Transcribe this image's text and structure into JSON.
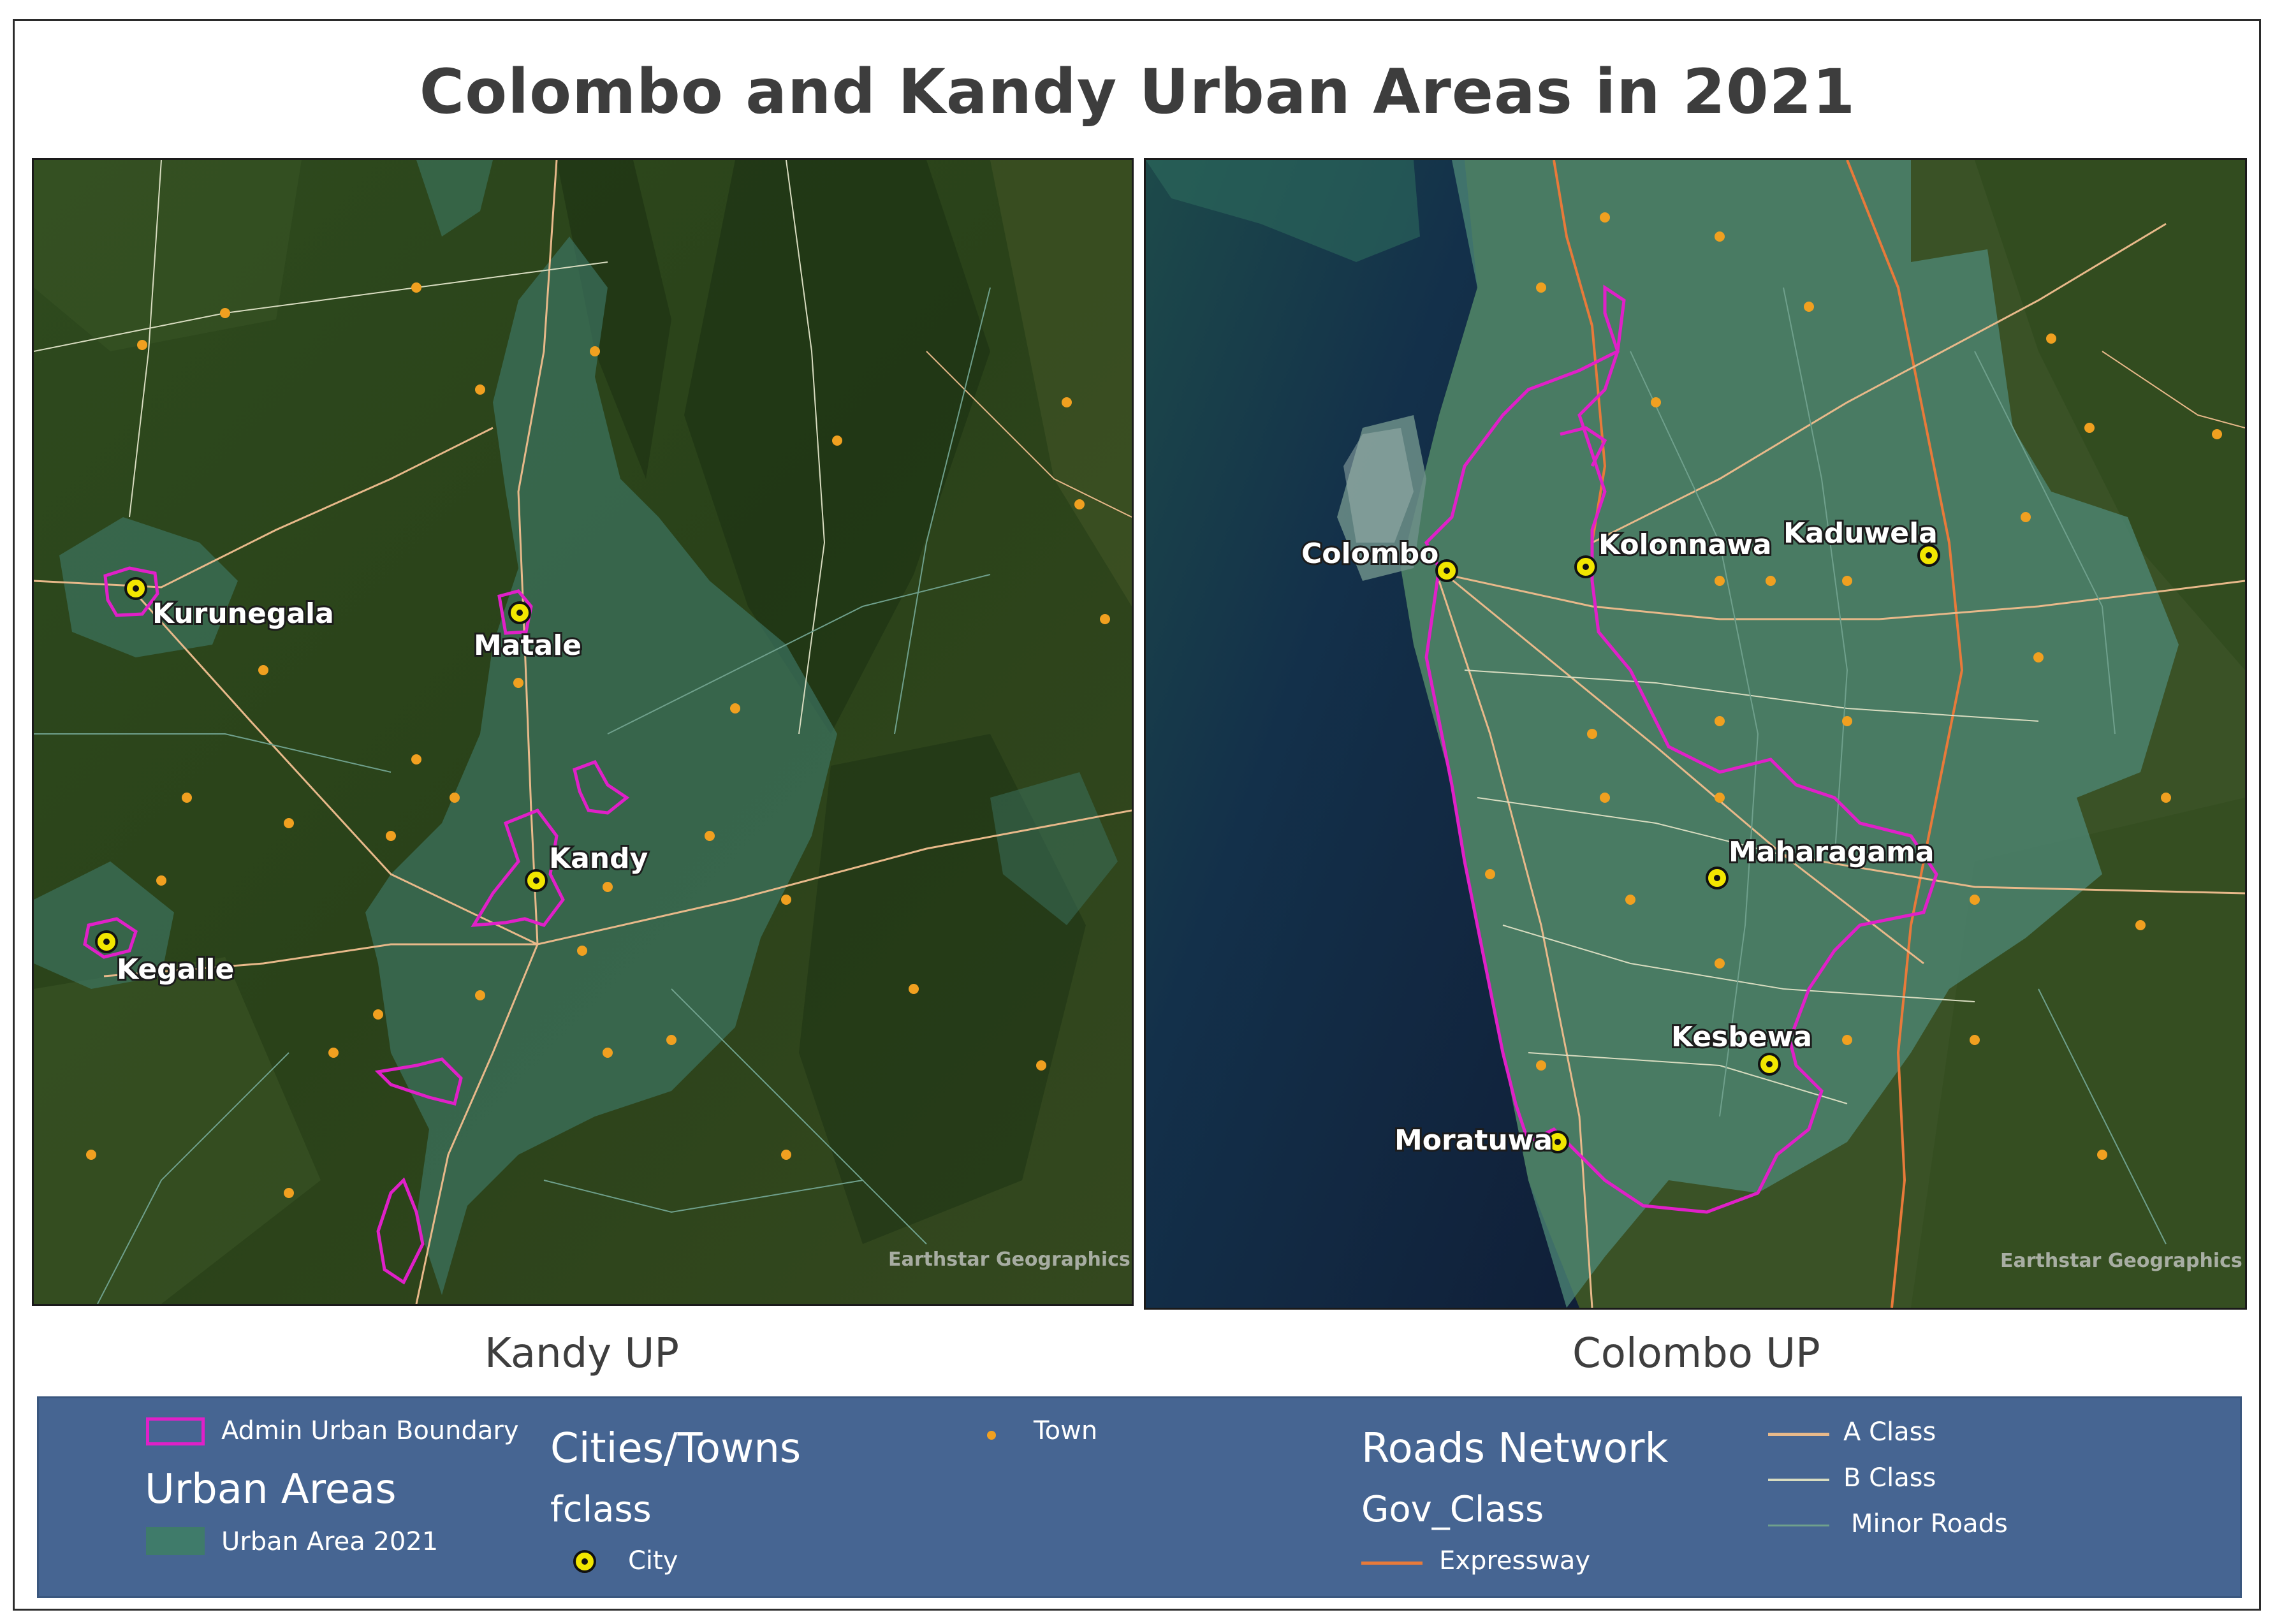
{
  "title": "Colombo and Kandy Urban Areas in 2021",
  "maps": {
    "kandy": {
      "caption": "Kandy UP",
      "attribution": "Earthstar Geographics",
      "places": {
        "kurunegala": "Kurunegala",
        "matale": "Matale",
        "kandy": "Kandy",
        "kegalle": "Kegalle"
      }
    },
    "colombo": {
      "caption": "Colombo UP",
      "attribution": "Earthstar Geographics",
      "places": {
        "colombo": "Colombo",
        "kolonnawa": "Kolonnawa",
        "kaduwela": "Kaduwela",
        "maharagama": "Maharagama",
        "kesbewa": "Kesbewa",
        "moratuwa": "Moratuwa"
      }
    }
  },
  "legend": {
    "admin_boundary": "Admin Urban Boundary",
    "urban_areas_heading": "Urban Areas",
    "urban_area_2021": "Urban Area 2021",
    "cities_heading": "Cities/Towns",
    "fclass": "fclass",
    "city": "City",
    "town": "Town",
    "roads_heading": "Roads Network",
    "gov_class": "Gov_Class",
    "expressway": "Expressway",
    "a_class": "A Class",
    "b_class": "B Class",
    "minor_roads": "Minor Roads"
  },
  "colors": {
    "admin_boundary": "#e020c8",
    "urban_area": "#3f7b6a",
    "town": "#f0a020",
    "city_fill": "#f2e600",
    "expressway": "#e87a3a",
    "a_class": "#e8b98a",
    "b_class": "#d8dcc0",
    "minor_roads": "#6fa08c",
    "legend_bg": "#466592"
  }
}
